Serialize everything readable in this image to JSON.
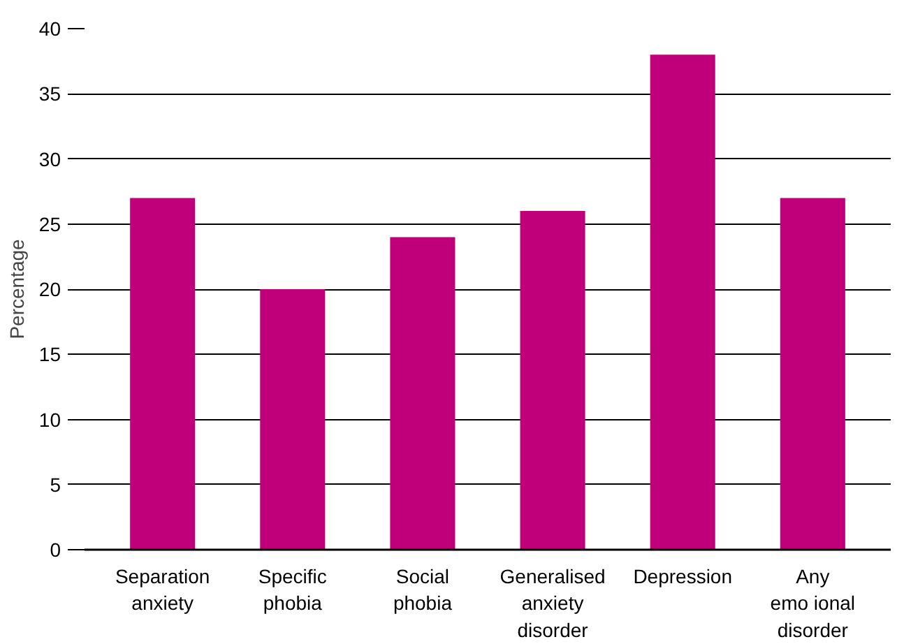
{
  "chart_data": {
    "type": "bar",
    "ylabel": "Percentage",
    "categories": [
      "Separation\nanxiety",
      "Specific\nphobia",
      "Social\nphobia",
      "Generalised\nanxiety\ndisorder",
      "Depression",
      "Any\nemo ional\ndisorder"
    ],
    "values": [
      27,
      20,
      24,
      26,
      38,
      27
    ],
    "color": "#c0007a",
    "ylim": [
      0,
      40
    ],
    "yticks": [
      0,
      5,
      10,
      15,
      20,
      25,
      30,
      35,
      40
    ],
    "grid": "y"
  }
}
